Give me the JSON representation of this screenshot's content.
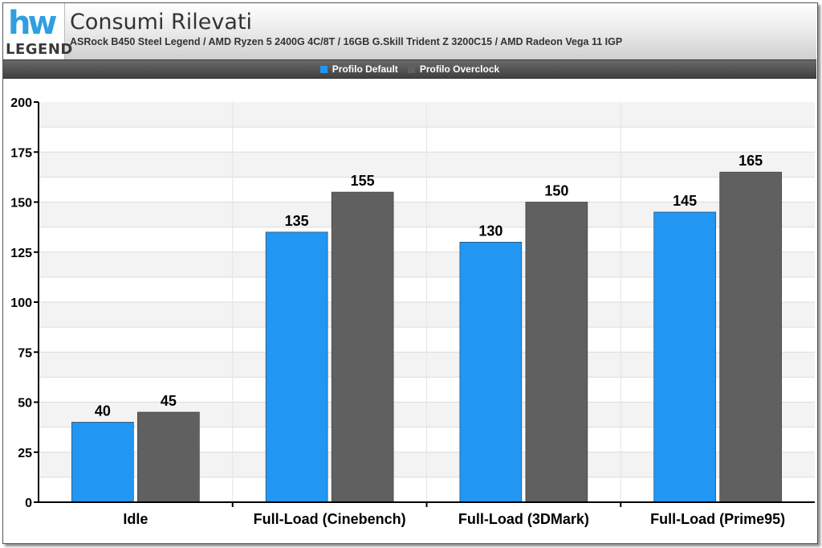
{
  "header": {
    "title": "Consumi Rilevati",
    "subtitle": "ASRock B450 Steel Legend / AMD Ryzen 5 2400G 4C/8T / 16GB G.Skill Trident Z 3200C15 / AMD Radeon Vega 11 IGP",
    "logo_mark": "hw",
    "logo_word": "LEGEND"
  },
  "chart_data": {
    "type": "bar",
    "categories": [
      "Idle",
      "Full-Load (Cinebench)",
      "Full-Load (3DMark)",
      "Full-Load (Prime95)"
    ],
    "series": [
      {
        "name": "Profilo Default",
        "values": [
          40,
          135,
          130,
          145
        ],
        "color": "#2196f3"
      },
      {
        "name": "Profilo Overclock",
        "values": [
          45,
          155,
          150,
          165
        ],
        "color": "#606060"
      }
    ],
    "ylim": [
      0,
      200
    ],
    "yticks": [
      0,
      25,
      50,
      75,
      100,
      125,
      150,
      175,
      200
    ],
    "grid": true,
    "legend_position": "top-center",
    "title": "Consumi Rilevati"
  }
}
